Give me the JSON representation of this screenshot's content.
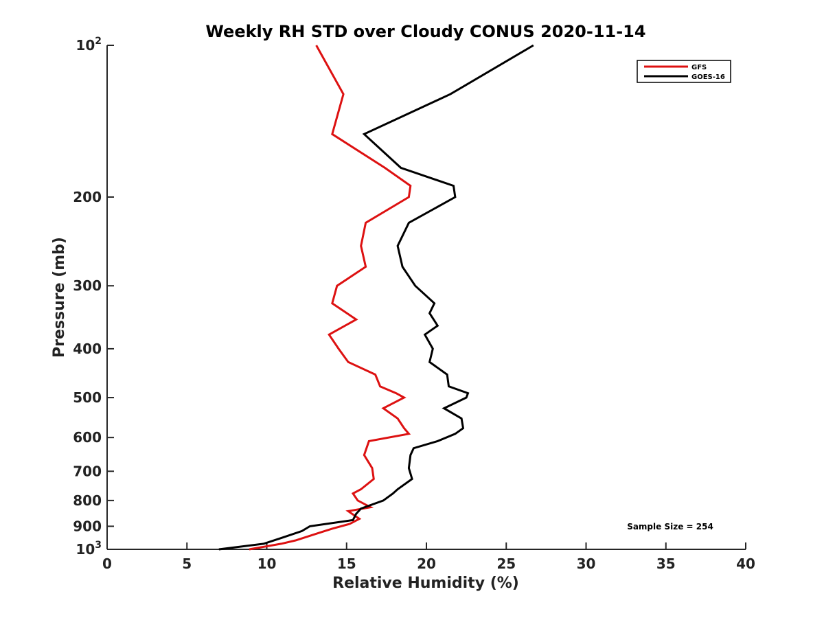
{
  "chart_data": {
    "type": "line",
    "title": "Weekly RH STD over Cloudy CONUS 2020-11-14",
    "xlabel": "Relative Humidity (%)",
    "ylabel": "Pressure (mb)",
    "xlim": [
      0,
      40
    ],
    "ylim": [
      100,
      1000
    ],
    "y_scale": "log",
    "y_reversed": true,
    "grid": false,
    "legend_position": "top-right",
    "x_ticks": [
      0,
      5,
      10,
      15,
      20,
      25,
      30,
      35,
      40
    ],
    "y_ticks": [
      {
        "value": 100,
        "base": "10",
        "exp": "2"
      },
      {
        "value": 200,
        "label": "200"
      },
      {
        "value": 300,
        "label": "300"
      },
      {
        "value": 400,
        "label": "400"
      },
      {
        "value": 500,
        "label": "500"
      },
      {
        "value": 600,
        "label": "600"
      },
      {
        "value": 700,
        "label": "700"
      },
      {
        "value": 800,
        "label": "800"
      },
      {
        "value": 900,
        "label": "900"
      },
      {
        "value": 1000,
        "base": "10",
        "exp": "3"
      }
    ],
    "annotation": "Sample Size = 254",
    "series": [
      {
        "name": "GFS",
        "color": "#dd1111",
        "points": [
          [
            13.1,
            100
          ],
          [
            14.8,
            125
          ],
          [
            14.1,
            150
          ],
          [
            17.4,
            175
          ],
          [
            19.0,
            190
          ],
          [
            18.9,
            200
          ],
          [
            16.2,
            225
          ],
          [
            15.9,
            250
          ],
          [
            16.2,
            275
          ],
          [
            14.4,
            300
          ],
          [
            14.1,
            325
          ],
          [
            15.6,
            350
          ],
          [
            13.9,
            375
          ],
          [
            14.5,
            400
          ],
          [
            15.1,
            425
          ],
          [
            16.8,
            450
          ],
          [
            17.1,
            475
          ],
          [
            18.1,
            490
          ],
          [
            18.6,
            500
          ],
          [
            17.3,
            525
          ],
          [
            18.2,
            550
          ],
          [
            18.6,
            575
          ],
          [
            18.9,
            590
          ],
          [
            16.4,
            610
          ],
          [
            16.1,
            650
          ],
          [
            16.6,
            690
          ],
          [
            16.7,
            725
          ],
          [
            15.9,
            760
          ],
          [
            15.4,
            775
          ],
          [
            15.7,
            800
          ],
          [
            16.5,
            825
          ],
          [
            15.1,
            840
          ],
          [
            15.8,
            870
          ],
          [
            15.2,
            890
          ],
          [
            14.1,
            910
          ],
          [
            13.4,
            925
          ],
          [
            12.7,
            940
          ],
          [
            11.8,
            960
          ],
          [
            10.9,
            975
          ],
          [
            8.9,
            1000
          ]
        ]
      },
      {
        "name": "GOES-16",
        "color": "#000000",
        "points": [
          [
            26.7,
            100
          ],
          [
            21.5,
            125
          ],
          [
            16.1,
            150
          ],
          [
            18.4,
            175
          ],
          [
            21.7,
            190
          ],
          [
            21.8,
            200
          ],
          [
            18.9,
            225
          ],
          [
            18.2,
            250
          ],
          [
            18.5,
            275
          ],
          [
            19.3,
            300
          ],
          [
            20.5,
            325
          ],
          [
            20.2,
            340
          ],
          [
            20.7,
            360
          ],
          [
            19.9,
            375
          ],
          [
            20.4,
            400
          ],
          [
            20.2,
            425
          ],
          [
            21.3,
            450
          ],
          [
            21.4,
            475
          ],
          [
            22.6,
            490
          ],
          [
            22.5,
            500
          ],
          [
            21.1,
            525
          ],
          [
            22.2,
            550
          ],
          [
            22.3,
            575
          ],
          [
            21.8,
            590
          ],
          [
            20.7,
            610
          ],
          [
            19.2,
            630
          ],
          [
            19.0,
            650
          ],
          [
            18.9,
            690
          ],
          [
            19.1,
            725
          ],
          [
            18.2,
            760
          ],
          [
            17.9,
            775
          ],
          [
            17.3,
            800
          ],
          [
            15.9,
            830
          ],
          [
            15.6,
            850
          ],
          [
            15.4,
            875
          ],
          [
            12.7,
            900
          ],
          [
            12.2,
            920
          ],
          [
            10.9,
            950
          ],
          [
            9.8,
            975
          ],
          [
            7.0,
            1000
          ]
        ]
      }
    ]
  }
}
